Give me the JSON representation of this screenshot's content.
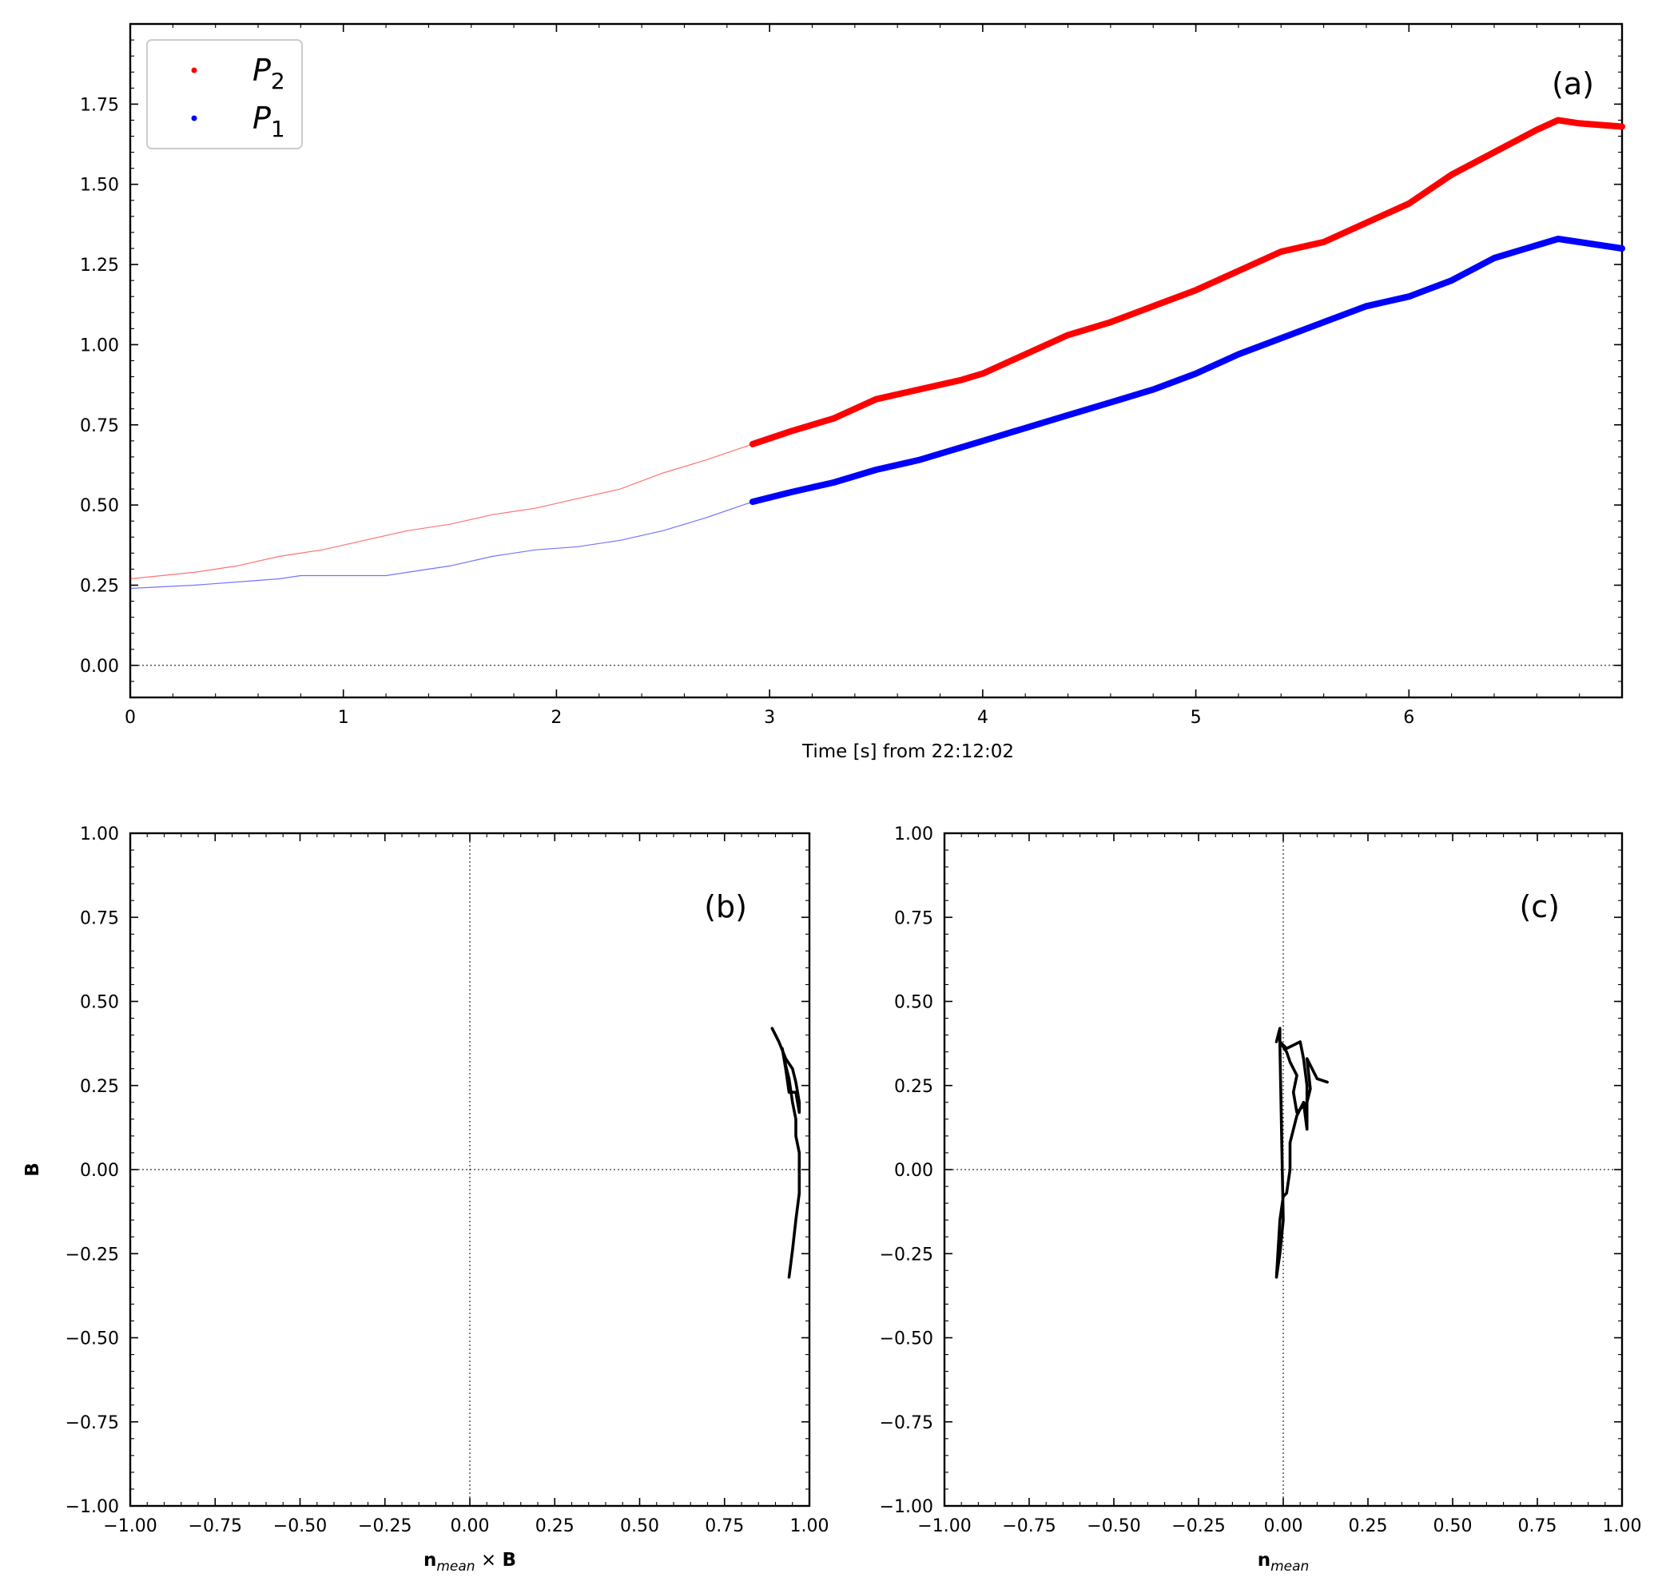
{
  "chart_data": [
    {
      "panel": "(a)",
      "type": "line",
      "xlabel": "Time [s] from 22:12:02",
      "ylabel": "",
      "xlim": [
        0,
        7
      ],
      "ylim": [
        -0.1,
        2.0
      ],
      "xticks": [
        0,
        1,
        2,
        3,
        4,
        5,
        6
      ],
      "xtick_labels": [
        "0",
        "1",
        "2",
        "3",
        "4",
        "5",
        "6"
      ],
      "yticks": [
        0.0,
        0.25,
        0.5,
        0.75,
        1.0,
        1.25,
        1.5,
        1.75
      ],
      "ytick_labels": [
        "0.00",
        "0.25",
        "0.50",
        "0.75",
        "1.00",
        "1.25",
        "1.50",
        "1.75"
      ],
      "reference_line_y": 0,
      "legend_placement": "top-left",
      "highlight_start_x": 2.92,
      "series": [
        {
          "name": "P",
          "subscript": "2",
          "color": "#ff0000",
          "x": [
            0,
            0.3,
            0.5,
            0.7,
            0.9,
            1.1,
            1.3,
            1.5,
            1.7,
            1.9,
            2.1,
            2.3,
            2.5,
            2.7,
            2.92,
            3.1,
            3.3,
            3.5,
            3.7,
            3.9,
            4.0,
            4.2,
            4.4,
            4.6,
            4.8,
            5.0,
            5.2,
            5.4,
            5.6,
            5.8,
            6.0,
            6.2,
            6.4,
            6.6,
            6.7,
            6.8,
            7.0
          ],
          "y": [
            0.27,
            0.29,
            0.31,
            0.34,
            0.36,
            0.39,
            0.42,
            0.44,
            0.47,
            0.49,
            0.52,
            0.55,
            0.6,
            0.64,
            0.69,
            0.73,
            0.77,
            0.83,
            0.86,
            0.89,
            0.91,
            0.97,
            1.03,
            1.07,
            1.12,
            1.17,
            1.23,
            1.29,
            1.32,
            1.38,
            1.44,
            1.53,
            1.6,
            1.67,
            1.7,
            1.69,
            1.68
          ]
        },
        {
          "name": "P",
          "subscript": "1",
          "color": "#0000ff",
          "x": [
            0,
            0.3,
            0.5,
            0.7,
            0.8,
            0.9,
            1.0,
            1.1,
            1.2,
            1.3,
            1.4,
            1.5,
            1.7,
            1.9,
            2.1,
            2.3,
            2.5,
            2.7,
            2.92,
            3.1,
            3.3,
            3.5,
            3.7,
            3.9,
            4.0,
            4.2,
            4.4,
            4.6,
            4.8,
            5.0,
            5.2,
            5.4,
            5.6,
            5.8,
            6.0,
            6.2,
            6.4,
            6.6,
            6.7,
            6.8,
            7.0
          ],
          "y": [
            0.24,
            0.25,
            0.26,
            0.27,
            0.28,
            0.28,
            0.28,
            0.28,
            0.28,
            0.29,
            0.3,
            0.31,
            0.34,
            0.36,
            0.37,
            0.39,
            0.42,
            0.46,
            0.51,
            0.54,
            0.57,
            0.61,
            0.64,
            0.68,
            0.7,
            0.74,
            0.78,
            0.82,
            0.86,
            0.91,
            0.97,
            1.02,
            1.07,
            1.12,
            1.15,
            1.2,
            1.27,
            1.31,
            1.33,
            1.32,
            1.3
          ]
        }
      ]
    },
    {
      "panel": "(b)",
      "type": "line",
      "xlabel_main": "n",
      "xlabel_sub": "mean",
      "xlabel_rest": "× B",
      "ylabel": "B",
      "xlim": [
        -1,
        1
      ],
      "ylim": [
        -1,
        1
      ],
      "ticks": [
        -1.0,
        -0.75,
        -0.5,
        -0.25,
        0.0,
        0.25,
        0.5,
        0.75,
        1.0
      ],
      "tick_labels": [
        "−1.00",
        "−0.75",
        "−0.50",
        "−0.25",
        "0.00",
        "0.25",
        "0.50",
        "0.75",
        "1.00"
      ],
      "reference_lines": {
        "x": 0,
        "y": 0
      },
      "series": [
        {
          "color": "#000000",
          "x": [
            0.89,
            0.91,
            0.93,
            0.95,
            0.96,
            0.97,
            0.97,
            0.96,
            0.94,
            0.93,
            0.92,
            0.93,
            0.94,
            0.95,
            0.96,
            0.96,
            0.97,
            0.97,
            0.97,
            0.96,
            0.95,
            0.94
          ],
          "y": [
            0.42,
            0.38,
            0.33,
            0.3,
            0.26,
            0.2,
            0.17,
            0.23,
            0.23,
            0.3,
            0.36,
            0.31,
            0.27,
            0.2,
            0.15,
            0.1,
            0.05,
            0.0,
            -0.07,
            -0.15,
            -0.24,
            -0.32
          ]
        }
      ]
    },
    {
      "panel": "(c)",
      "type": "line",
      "xlabel_main": "n",
      "xlabel_sub": "mean",
      "xlabel_rest": "",
      "ylabel": "",
      "xlim": [
        -1,
        1
      ],
      "ylim": [
        -1,
        1
      ],
      "ticks": [
        -1.0,
        -0.75,
        -0.5,
        -0.25,
        0.0,
        0.25,
        0.5,
        0.75,
        1.0
      ],
      "tick_labels": [
        "−1.00",
        "−0.75",
        "−0.50",
        "−0.25",
        "0.00",
        "0.25",
        "0.50",
        "0.75",
        "1.00"
      ],
      "reference_lines": {
        "x": 0,
        "y": 0
      },
      "series": [
        {
          "color": "#000000",
          "x": [
            0.13,
            0.1,
            0.07,
            0.08,
            0.07,
            0.04,
            0.03,
            0.04,
            0.02,
            0.01,
            -0.01,
            0.01,
            0.03,
            0.05,
            0.06,
            0.07,
            0.07,
            0.07,
            0.06,
            0.04,
            0.02,
            0.02,
            0.01,
            0.0,
            -0.01,
            -0.02,
            -0.01,
            0.0,
            -0.01,
            -0.01,
            -0.02
          ],
          "y": [
            0.26,
            0.27,
            0.33,
            0.24,
            0.2,
            0.17,
            0.23,
            0.28,
            0.32,
            0.35,
            0.38,
            0.36,
            0.37,
            0.38,
            0.33,
            0.25,
            0.18,
            0.12,
            0.2,
            0.16,
            0.08,
            0.0,
            -0.07,
            -0.08,
            -0.15,
            -0.32,
            -0.25,
            -0.15,
            0.37,
            0.42,
            0.38
          ]
        }
      ]
    }
  ]
}
